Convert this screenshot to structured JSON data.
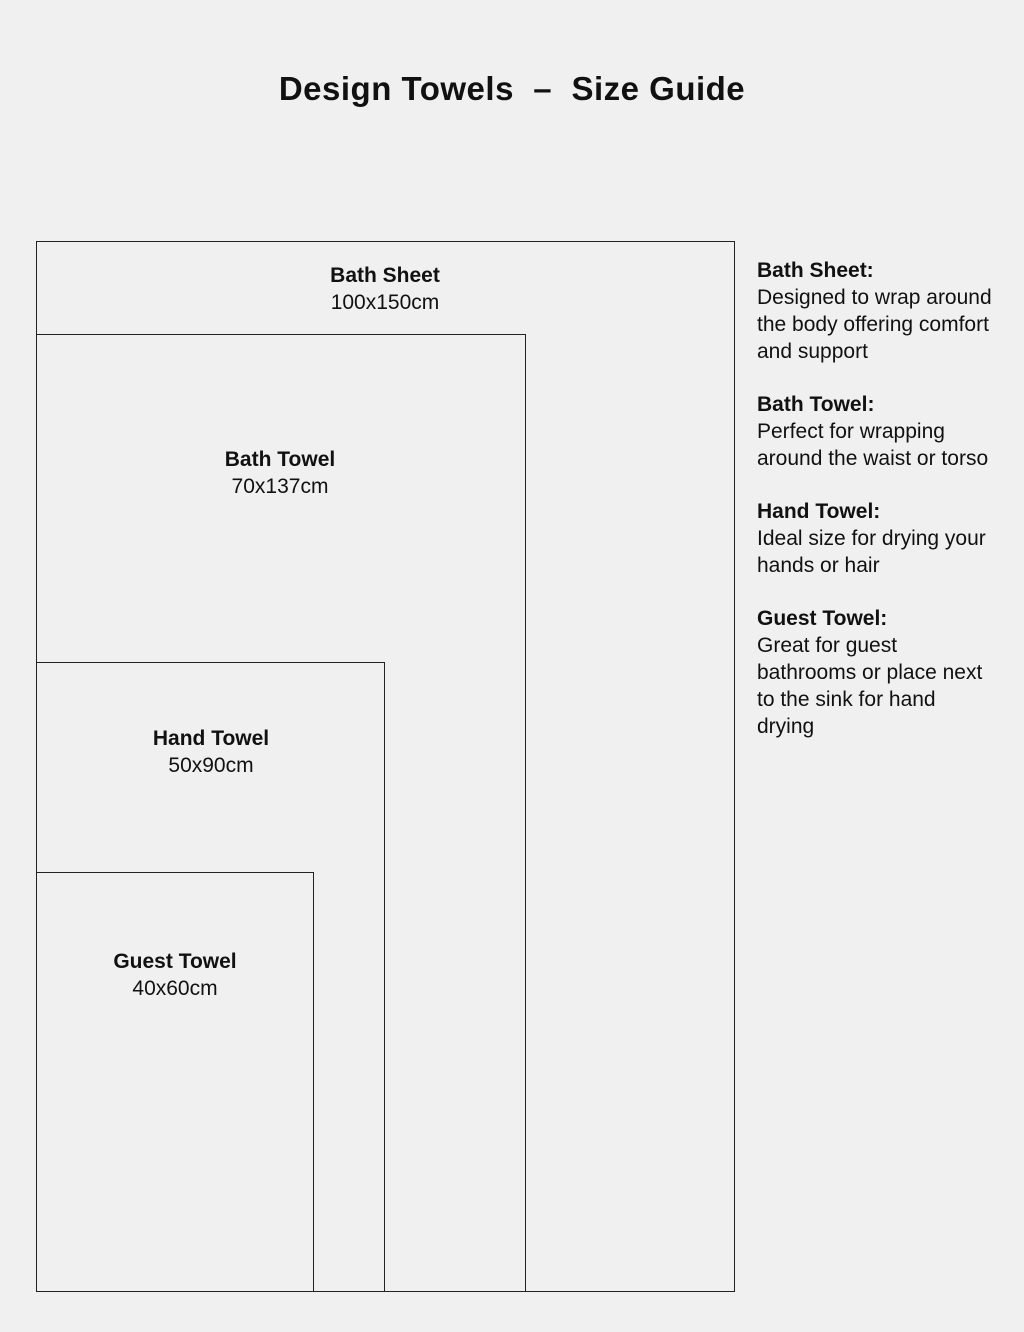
{
  "title": "Design Towels  –  Size Guide",
  "towels": [
    {
      "name": "Bath Sheet",
      "size": "100x150cm",
      "width_cm": 100,
      "length_cm": 150
    },
    {
      "name": "Bath Towel",
      "size": "70x137cm",
      "width_cm": 70,
      "length_cm": 137
    },
    {
      "name": "Hand Towel",
      "size": "50x90cm",
      "width_cm": 50,
      "length_cm": 90
    },
    {
      "name": "Guest Towel",
      "size": "40x60cm",
      "width_cm": 40,
      "length_cm": 60
    }
  ],
  "descriptions": [
    {
      "heading": "Bath Sheet:",
      "text": "Designed to wrap around the body offering comfort and support"
    },
    {
      "heading": "Bath Towel:",
      "text": "Perfect for wrapping around the waist or torso"
    },
    {
      "heading": "Hand Towel:",
      "text": "Ideal size for drying your hands or hair"
    },
    {
      "heading": "Guest Towel:",
      "text": "Great for guest bathrooms or place next to the sink for hand drying"
    }
  ]
}
